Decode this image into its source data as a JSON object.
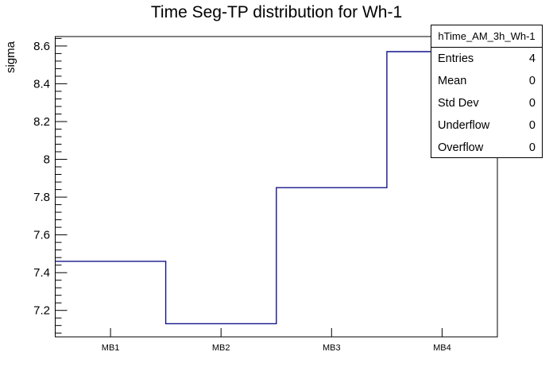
{
  "title": "Time Seg-TP distribution for Wh-1",
  "y_axis": {
    "label": "sigma",
    "tick_labels": [
      "7.2",
      "7.4",
      "7.6",
      "7.8",
      "8",
      "8.2",
      "8.4",
      "8.6"
    ],
    "tick_values": [
      7.2,
      7.4,
      7.6,
      7.8,
      8.0,
      8.2,
      8.4,
      8.6
    ],
    "minor_step": 0.04
  },
  "x_axis": {
    "categories": [
      "MB1",
      "MB2",
      "MB3",
      "MB4"
    ]
  },
  "stats_box": {
    "title": "hTime_AM_3h_Wh-1",
    "rows": [
      {
        "label": "Entries",
        "value": "4"
      },
      {
        "label": "Mean",
        "value": "0"
      },
      {
        "label": "Std Dev",
        "value": "0"
      },
      {
        "label": "Underflow",
        "value": "0"
      },
      {
        "label": "Overflow",
        "value": "0"
      }
    ]
  },
  "colors": {
    "line": "#14148c",
    "axis": "#000000",
    "background": "#ffffff"
  },
  "chart_data": {
    "type": "step-histogram",
    "title": "Time Seg-TP distribution for Wh-1",
    "xlabel": "",
    "ylabel": "sigma",
    "categories": [
      "MB1",
      "MB2",
      "MB3",
      "MB4"
    ],
    "values": [
      7.46,
      7.13,
      7.85,
      8.57
    ],
    "ylim": [
      7.06,
      8.65
    ],
    "y_major_ticks": [
      7.2,
      7.4,
      7.6,
      7.8,
      8.0,
      8.2,
      8.4,
      8.6
    ],
    "y_minor_step": 0.04,
    "grid": "off",
    "legend": "stats-box-top-right",
    "series_color": "#14148c"
  }
}
